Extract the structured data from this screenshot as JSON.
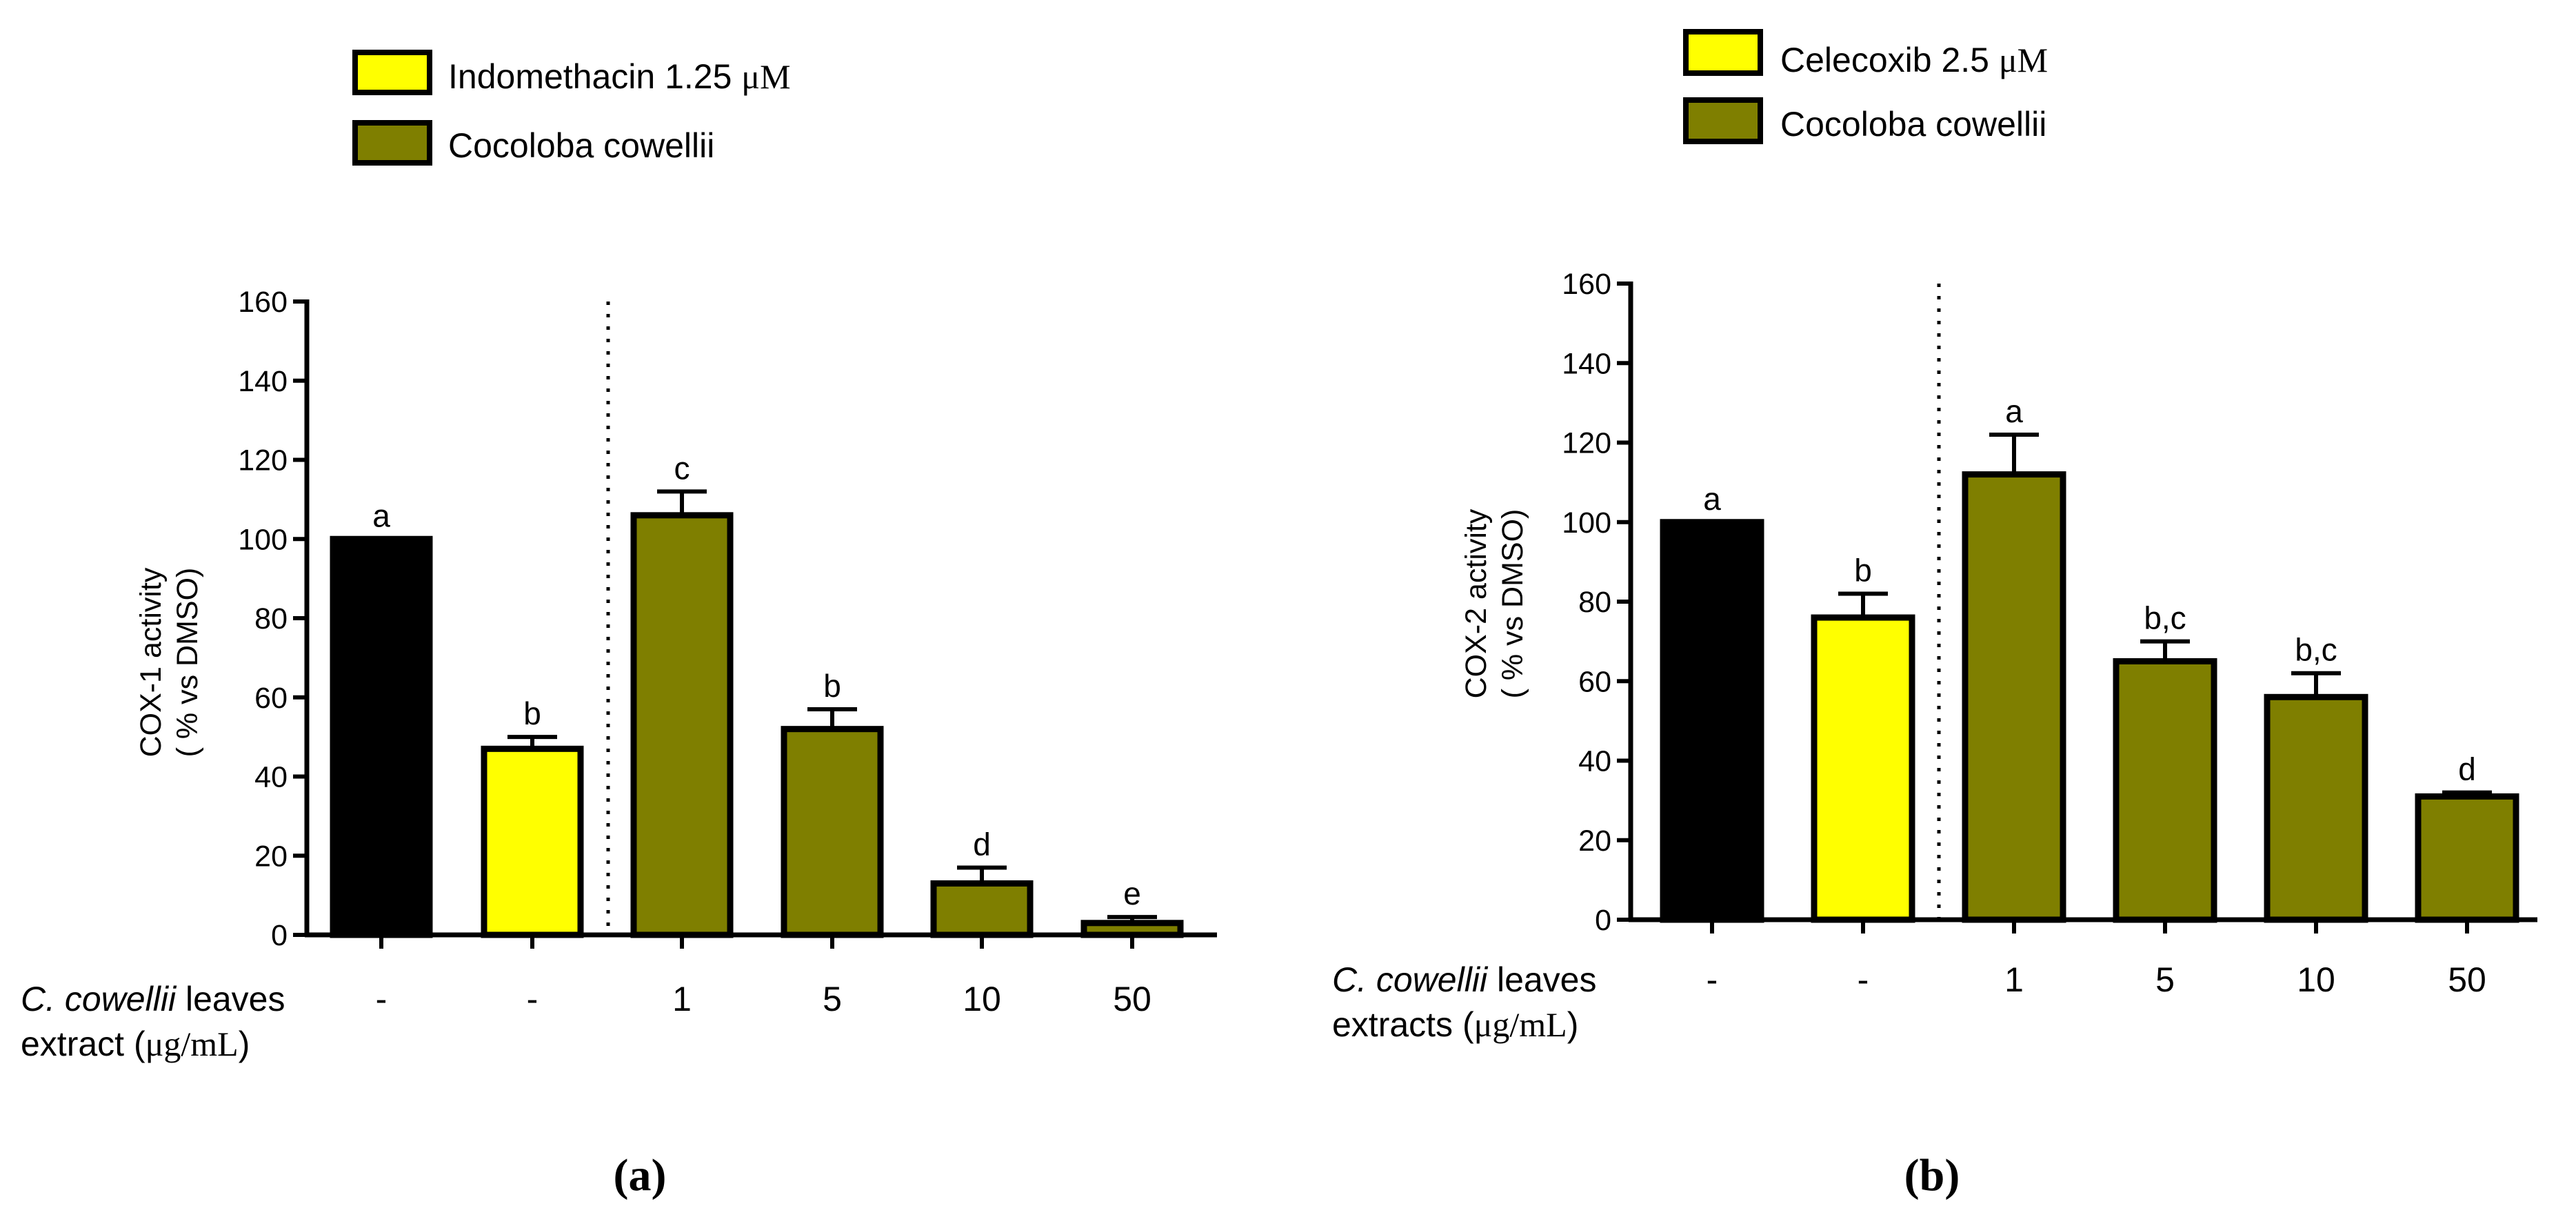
{
  "panels": [
    {
      "panel_label": "(a)",
      "legend": [
        {
          "label_main": "Indomethacin 1.25 ",
          "label_unit": "μM",
          "color": "#ffff00"
        },
        {
          "label_main": "Cocoloba cowellii",
          "label_unit": "",
          "color": "#7f7f00"
        }
      ],
      "x_title": {
        "line1_italic": "C. cowellii",
        "line1_rest": " leaves",
        "line2_pre": "extract (",
        "line2_unit": "μg/mL",
        "line2_post": ")"
      }
    },
    {
      "panel_label": "(b)",
      "legend": [
        {
          "label_main": "Celecoxib 2.5 ",
          "label_unit": "μM",
          "color": "#ffff00"
        },
        {
          "label_main": "Cocoloba cowellii",
          "label_unit": "",
          "color": "#7f7f00"
        }
      ],
      "x_title": {
        "line1_italic": "C. cowellii",
        "line1_rest": " leaves",
        "line2_pre": "extracts (",
        "line2_unit": "μg/mL",
        "line2_post": ")"
      }
    }
  ],
  "chart_data": [
    {
      "type": "bar",
      "ylabel_line1": "COX-1 activity",
      "ylabel_line2": "( % vs DMSO)",
      "ylim": [
        0,
        160
      ],
      "yticks": [
        0,
        20,
        40,
        60,
        80,
        100,
        120,
        140,
        160
      ],
      "categories": [
        "-",
        "-",
        "1",
        "5",
        "10",
        "50"
      ],
      "values": [
        100,
        47,
        106,
        52,
        13,
        3
      ],
      "errors": [
        0,
        3,
        6,
        5,
        4,
        1.5
      ],
      "letters": [
        "a",
        "b",
        "c",
        "b",
        "d",
        "e"
      ],
      "colors": [
        "#000000",
        "#ffff00",
        "#7f7f00",
        "#7f7f00",
        "#7f7f00",
        "#7f7f00"
      ],
      "divider_after_index": 1
    },
    {
      "type": "bar",
      "ylabel_line1": "COX-2 activity",
      "ylabel_line2": "( % vs DMSO)",
      "ylim": [
        0,
        160
      ],
      "yticks": [
        0,
        20,
        40,
        60,
        80,
        100,
        120,
        140,
        160
      ],
      "categories": [
        "-",
        "-",
        "1",
        "5",
        "10",
        "50"
      ],
      "values": [
        100,
        76,
        112,
        65,
        56,
        31
      ],
      "errors": [
        0,
        6,
        10,
        5,
        6,
        1
      ],
      "letters": [
        "a",
        "b",
        "a",
        "b,c",
        "b,c",
        "d"
      ],
      "colors": [
        "#000000",
        "#ffff00",
        "#7f7f00",
        "#7f7f00",
        "#7f7f00",
        "#7f7f00"
      ],
      "divider_after_index": 1
    }
  ]
}
